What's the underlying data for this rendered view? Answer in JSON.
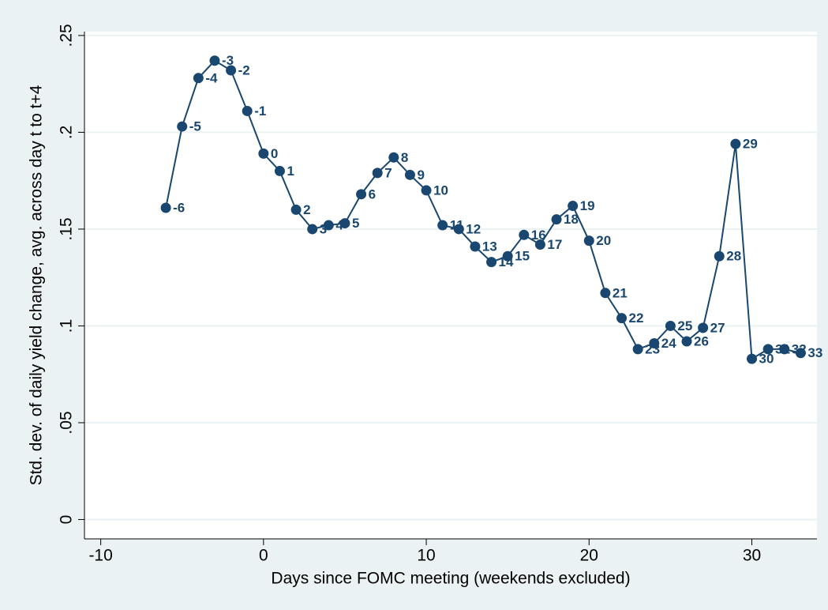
{
  "chart_data": {
    "type": "line",
    "x_label": "Days since FOMC meeting (weekends excluded)",
    "y_label": "Std. dev. of daily yield change, avg. across day t to t+4",
    "x": [
      -6,
      -5,
      -4,
      -3,
      -2,
      -1,
      0,
      1,
      2,
      3,
      4,
      5,
      6,
      7,
      8,
      9,
      10,
      11,
      12,
      13,
      14,
      15,
      16,
      17,
      18,
      19,
      20,
      21,
      22,
      23,
      24,
      25,
      26,
      27,
      28,
      29,
      30,
      31,
      32,
      33
    ],
    "series": [
      {
        "color": "#1a476f",
        "values": [
          0.161,
          0.203,
          0.228,
          0.237,
          0.232,
          0.211,
          0.189,
          0.18,
          0.16,
          0.15,
          0.152,
          0.153,
          0.168,
          0.179,
          0.187,
          0.178,
          0.17,
          0.152,
          0.15,
          0.141,
          0.133,
          0.136,
          0.147,
          0.142,
          0.155,
          0.162,
          0.144,
          0.117,
          0.104,
          0.088,
          0.091,
          0.1,
          0.092,
          0.099,
          0.136,
          0.194,
          0.083,
          0.088,
          0.088,
          0.086
        ]
      }
    ],
    "xlim": [
      -11,
      34
    ],
    "ylim": [
      -0.01,
      0.252
    ],
    "xticks": [
      -10,
      0,
      10,
      20,
      30
    ],
    "yticks": [
      0,
      {
        "value": 0.05,
        "label": ".05"
      },
      {
        "value": 0.1,
        "label": ".1"
      },
      {
        "value": 0.15,
        "label": ".15"
      },
      {
        "value": 0.2,
        "label": ".2"
      },
      {
        "value": 0.25,
        "label": ".25"
      }
    ],
    "grid": true
  }
}
